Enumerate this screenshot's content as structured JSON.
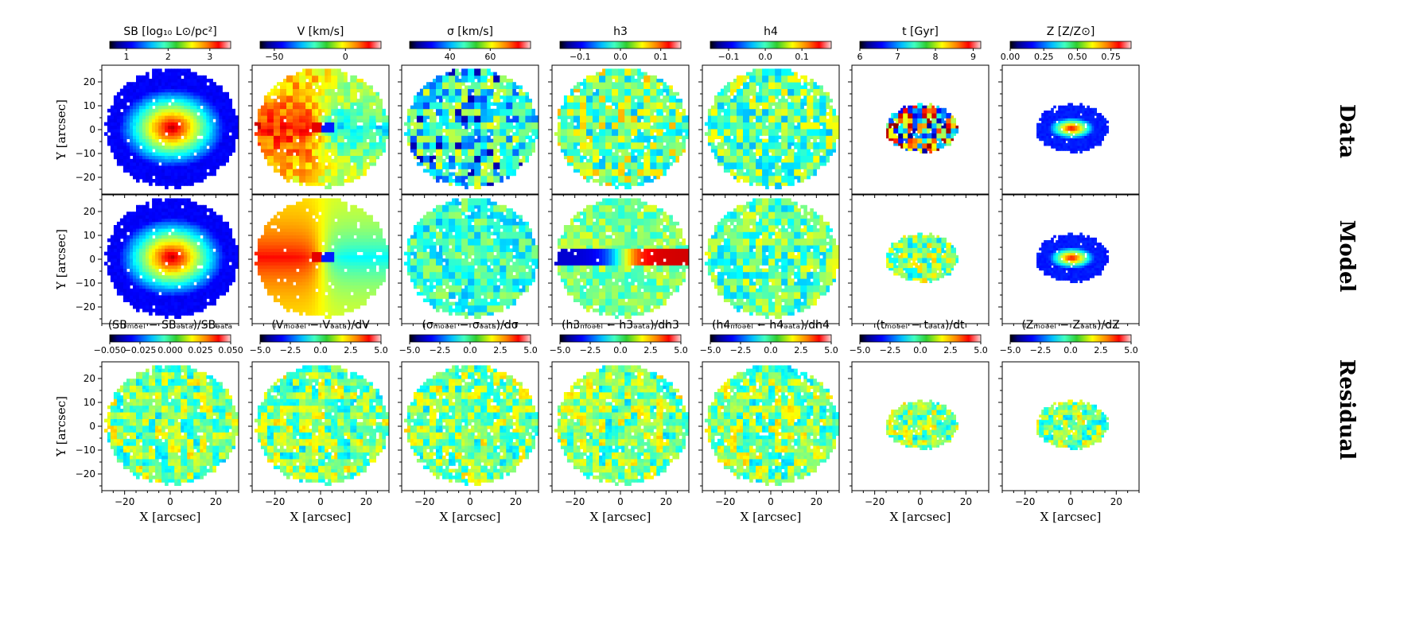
{
  "chart_data": {
    "type": "heatmap",
    "description_rows": [
      "Data",
      "Model",
      "Residual"
    ],
    "row_labels": [
      "Data",
      "Model",
      "Residual"
    ],
    "xlabel": "X [arcsec]",
    "ylabel": "Y [arcsec]",
    "xlim": [
      -30,
      30
    ],
    "ylim": [
      -27,
      27
    ],
    "xticks": [
      "−20",
      "0",
      "20"
    ],
    "yticks": [
      "−20",
      "−10",
      "0",
      "10",
      "20"
    ],
    "grid": false,
    "colormap": "jet",
    "top_colorbars": [
      {
        "title": "SB [log₁₀ L⊙/pc²]",
        "range": [
          0.6,
          3.5
        ],
        "ticks": [
          "1",
          "2",
          "3"
        ],
        "tick_values": [
          1,
          2,
          3
        ]
      },
      {
        "title": "V [km/s]",
        "range": [
          -60,
          25
        ],
        "ticks": [
          "−50",
          "0"
        ],
        "tick_values": [
          -50,
          0
        ]
      },
      {
        "title": "σ [km/s]",
        "range": [
          20,
          80
        ],
        "ticks": [
          "40",
          "60"
        ],
        "tick_values": [
          40,
          60
        ]
      },
      {
        "title": "h3",
        "range": [
          -0.15,
          0.15
        ],
        "ticks": [
          "−0.1",
          "0.0",
          "0.1"
        ],
        "tick_values": [
          -0.1,
          0.0,
          0.1
        ]
      },
      {
        "title": "h4",
        "range": [
          -0.15,
          0.18
        ],
        "ticks": [
          "−0.1",
          "0.0",
          "0.1"
        ],
        "tick_values": [
          -0.1,
          0.0,
          0.1
        ]
      },
      {
        "title": "t [Gyr]",
        "range": [
          6,
          9.2
        ],
        "ticks": [
          "6",
          "7",
          "8",
          "9"
        ],
        "tick_values": [
          6,
          7,
          8,
          9
        ]
      },
      {
        "title": "Z [Z/Z⊙]",
        "range": [
          0.0,
          0.9
        ],
        "ticks": [
          "0.00",
          "0.25",
          "0.50",
          "0.75"
        ],
        "tick_values": [
          0.0,
          0.25,
          0.5,
          0.75
        ]
      }
    ],
    "residual_colorbars": [
      {
        "title": "(SBₘₒ⁤ₑₗ − SBₔₐₜₐ)/SBₔₐₜₐ",
        "range": [
          -0.05,
          0.05
        ],
        "ticks": [
          "−0.050",
          "−0.025",
          "0.000",
          "0.025",
          "0.050"
        ],
        "tick_values": [
          -0.05,
          -0.025,
          0.0,
          0.025,
          0.05
        ]
      },
      {
        "title": "(Vₘₒₔₑₗ − Vₔₐₜₐ)/dV",
        "range": [
          -5,
          5
        ],
        "ticks": [
          "−5.0",
          "−2.5",
          "0.0",
          "2.5",
          "5.0"
        ],
        "tick_values": [
          -5,
          -2.5,
          0,
          2.5,
          5
        ]
      },
      {
        "title": "(σₘₒₔₑₗ − σₔₐₜₐ)/dσ",
        "range": [
          -5,
          5
        ],
        "ticks": [
          "−5.0",
          "−2.5",
          "0.0",
          "2.5",
          "5.0"
        ],
        "tick_values": [
          -5,
          -2.5,
          0,
          2.5,
          5
        ]
      },
      {
        "title": "(h3ₘₒₔₑₗ − h3ₔₐₜₐ)/dh3",
        "range": [
          -5,
          5
        ],
        "ticks": [
          "−5.0",
          "−2.5",
          "0.0",
          "2.5",
          "5.0"
        ],
        "tick_values": [
          -5,
          -2.5,
          0,
          2.5,
          5
        ]
      },
      {
        "title": "(h4ₘₒₔₑₗ − h4ₔₐₜₐ)/dh4",
        "range": [
          -5,
          5
        ],
        "ticks": [
          "−5.0",
          "−2.5",
          "0.0",
          "2.5",
          "5.0"
        ],
        "tick_values": [
          -5,
          -2.5,
          0,
          2.5,
          5
        ]
      },
      {
        "title": "(tₘₒₔₑₗ − tₔₐₜₐ)/dt",
        "range": [
          -5,
          5
        ],
        "ticks": [
          "−5.0",
          "−2.5",
          "0.0",
          "2.5",
          "5.0"
        ],
        "tick_values": [
          -5,
          -2.5,
          0,
          2.5,
          5
        ]
      },
      {
        "title": "(Zₘₒₔₑₗ − Zₔₐₜₐ)/dZ",
        "range": [
          -5,
          5
        ],
        "ticks": [
          "−5.0",
          "−2.5",
          "0.0",
          "2.5",
          "5.0"
        ],
        "tick_values": [
          -5,
          -2.5,
          0,
          2.5,
          5
        ]
      }
    ],
    "maps": {
      "columns": [
        "SB",
        "V",
        "sigma",
        "h3",
        "h4",
        "t",
        "Z"
      ],
      "field_extent_arcsec": [
        {
          "semi_x": 29,
          "semi_y": 25
        },
        {
          "semi_x": 29,
          "semi_y": 25
        },
        {
          "semi_x": 29,
          "semi_y": 25
        },
        {
          "semi_x": 29,
          "semi_y": 25
        },
        {
          "semi_x": 29,
          "semi_y": 25
        },
        {
          "semi_x": 16,
          "semi_y": 10
        },
        {
          "semi_x": 16,
          "semi_y": 10
        }
      ]
    }
  }
}
